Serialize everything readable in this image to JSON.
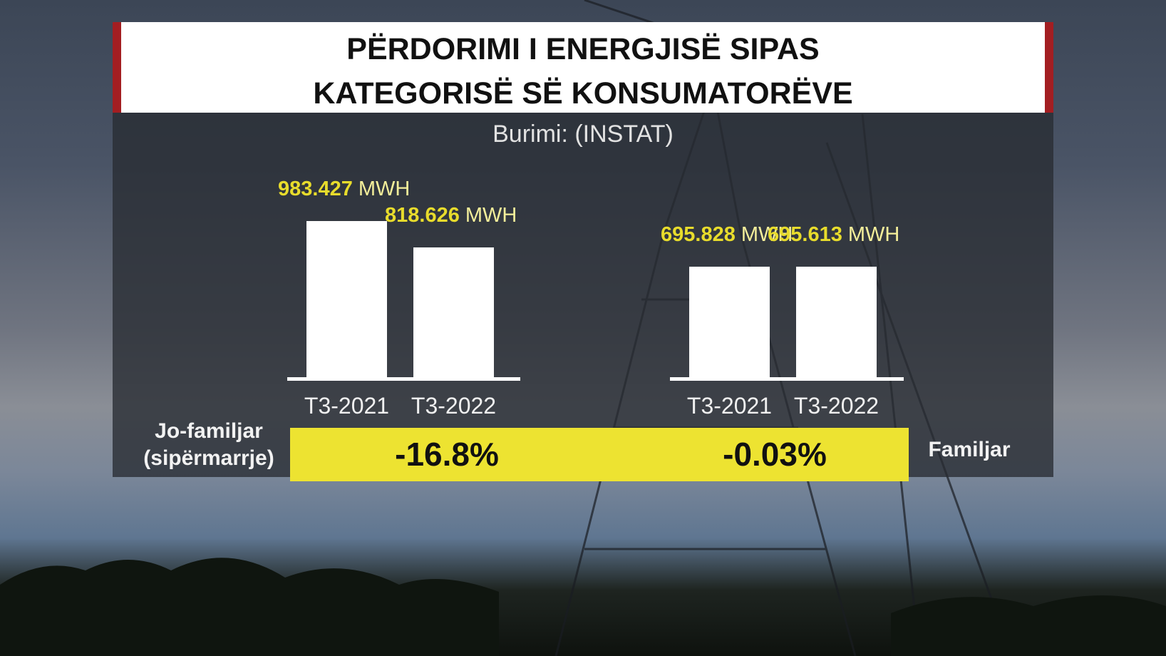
{
  "header": {
    "title_lines": [
      "PËRDORIMI I ENERGJISË SIPAS",
      "KATEGORISË SË KONSUMATORËVE"
    ],
    "source": "Burimi: (INSTAT)"
  },
  "chart_data": [
    {
      "type": "bar",
      "name": "Jo-familjar (sipërmarrje)",
      "categories": [
        "T3-2021",
        "T3-2022"
      ],
      "values": [
        983427,
        818626
      ],
      "value_labels": [
        "983.427",
        "818.626"
      ],
      "unit": "MWH",
      "change": "-16.8%",
      "color": "#ffffff"
    },
    {
      "type": "bar",
      "name": "Familjar",
      "categories": [
        "T3-2021",
        "T3-2022"
      ],
      "values": [
        695828,
        695613
      ],
      "value_labels": [
        "695.828",
        "695.613"
      ],
      "unit": "MWH",
      "change": "-0.03%",
      "color": "#ffffff"
    }
  ]
}
